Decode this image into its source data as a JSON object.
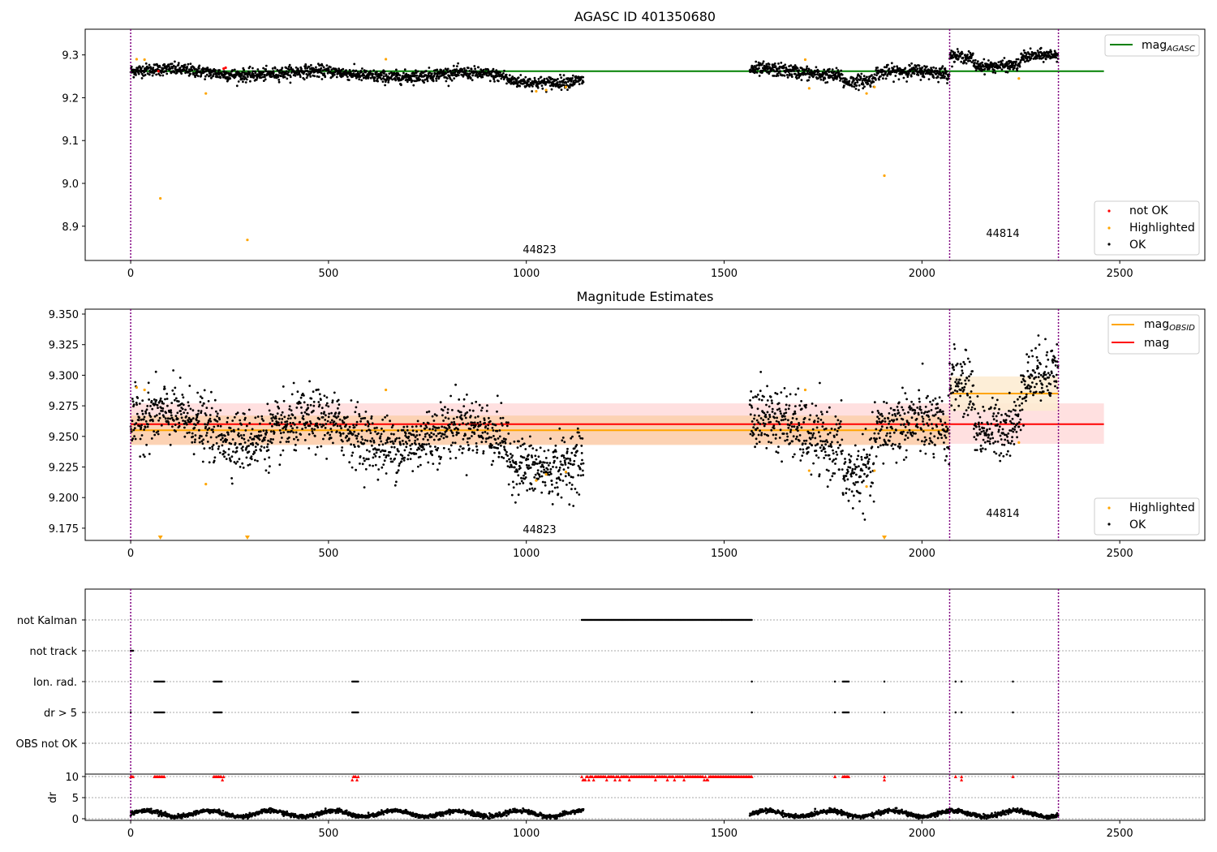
{
  "colors": {
    "ok": "#000000",
    "not_ok": "#ff0000",
    "highlighted": "#ffa500",
    "mag_agasc": "#008000",
    "mag_obsid": "#ffa500",
    "mag": "#ff0000",
    "obs_boundary": "#800080"
  },
  "chart_data": [
    {
      "type": "scatter",
      "title": "AGASC ID 401350680",
      "xlim": [
        -115,
        2715
      ],
      "ylim": [
        8.82,
        9.36
      ],
      "x_ticks": [
        "0",
        "500",
        "1000",
        "1500",
        "2000",
        "2500"
      ],
      "y_ticks": [
        "8.9",
        "9.0",
        "9.1",
        "9.2",
        "9.3"
      ],
      "obs_boundaries": [
        0,
        2070,
        2345
      ],
      "obs_labels": [
        {
          "text": "44823",
          "x": 1035,
          "y": 8.84
        },
        {
          "text": "44814",
          "x": 2207,
          "y": 8.878
        }
      ],
      "lines": [
        {
          "name": "mag_AGASC",
          "y": 9.262,
          "x": [
            0,
            2460
          ],
          "color": "#008000"
        }
      ],
      "legend_top": {
        "label": "mag",
        "sub": "AGASC",
        "loc": "upper right"
      },
      "legend_bottom": [
        {
          "label": "not OK",
          "color": "#ff0000"
        },
        {
          "label": "Highlighted",
          "color": "#ffa500"
        },
        {
          "label": "OK",
          "color": "#000000"
        }
      ],
      "ok_segments": [
        {
          "x0": 0,
          "x1": 1145,
          "y_start": 9.262,
          "y_end": 9.248,
          "spread": 0.024
        },
        {
          "x0": 1565,
          "x1": 2070,
          "y_start": 9.26,
          "y_end": 9.255,
          "spread": 0.026
        },
        {
          "x0": 2070,
          "x1": 2345,
          "y_start": 9.298,
          "y_end": 9.295,
          "spread": 0.022
        }
      ],
      "highlighted_points": [
        [
          15,
          9.29
        ],
        [
          35,
          9.289
        ],
        [
          75,
          8.965
        ],
        [
          190,
          9.21
        ],
        [
          295,
          8.868
        ],
        [
          645,
          9.29
        ],
        [
          1025,
          9.215
        ],
        [
          1050,
          9.218
        ],
        [
          1100,
          9.225
        ],
        [
          1705,
          9.289
        ],
        [
          1715,
          9.222
        ],
        [
          1860,
          9.21
        ],
        [
          1880,
          9.225
        ],
        [
          1905,
          9.018
        ],
        [
          2245,
          9.245
        ]
      ],
      "not_ok_points": [
        [
          70,
          9.262
        ],
        [
          235,
          9.268
        ],
        [
          240,
          9.27
        ]
      ]
    },
    {
      "type": "scatter",
      "title": "Magnitude Estimates",
      "xlim": [
        -115,
        2715
      ],
      "ylim": [
        9.165,
        9.354
      ],
      "x_ticks": [
        "0",
        "500",
        "1000",
        "1500",
        "2000",
        "2500"
      ],
      "y_ticks": [
        "9.175",
        "9.200",
        "9.225",
        "9.250",
        "9.275",
        "9.300",
        "9.325",
        "9.350"
      ],
      "obs_boundaries": [
        0,
        2070,
        2345
      ],
      "obs_labels": [
        {
          "text": "44823",
          "x": 1035,
          "y": 9.173
        },
        {
          "text": "44814",
          "x": 2207,
          "y": 9.183
        }
      ],
      "bands": [
        {
          "x": [
            0,
            2460
          ],
          "y": [
            9.244,
            9.277
          ],
          "color": "#ffdada"
        },
        {
          "x": [
            0,
            2070
          ],
          "y": [
            9.243,
            9.267
          ],
          "color": "#fccfaa"
        },
        {
          "x": [
            2070,
            2345
          ],
          "y": [
            9.271,
            9.299
          ],
          "color": "#fdebd0"
        }
      ],
      "lines": [
        {
          "name": "mag",
          "y": 9.26,
          "x": [
            0,
            2460
          ],
          "color": "#ff0000"
        },
        {
          "name": "mag_OBSID",
          "y": 9.255,
          "x": [
            0,
            2070
          ],
          "color": "#ffa500"
        },
        {
          "name": "mag_OBSID",
          "y": 9.285,
          "x": [
            2070,
            2345
          ],
          "color": "#ffa500"
        }
      ],
      "legend_top": [
        {
          "label": "mag",
          "sub": "OBSID",
          "color": "#ffa500"
        },
        {
          "label": "mag",
          "sub": "",
          "color": "#ff0000"
        }
      ],
      "legend_bottom": [
        {
          "label": "Highlighted",
          "color": "#ffa500"
        },
        {
          "label": "OK",
          "color": "#000000"
        }
      ],
      "ok_segments": [
        {
          "x0": 0,
          "x1": 1145,
          "y_start": 9.26,
          "y_end": 9.245,
          "spread": 0.04
        },
        {
          "x0": 1565,
          "x1": 2070,
          "y_start": 9.255,
          "y_end": 9.25,
          "spread": 0.045
        },
        {
          "x0": 2070,
          "x1": 2345,
          "y_start": 9.298,
          "y_end": 9.296,
          "spread": 0.04
        }
      ],
      "highlighted_points": [
        [
          15,
          9.29
        ],
        [
          35,
          9.288
        ],
        [
          190,
          9.211
        ],
        [
          645,
          9.288
        ],
        [
          1025,
          9.214
        ],
        [
          1050,
          9.219
        ],
        [
          1100,
          9.221
        ],
        [
          1705,
          9.288
        ],
        [
          1715,
          9.222
        ],
        [
          1860,
          9.209
        ],
        [
          1880,
          9.222
        ],
        [
          2245,
          9.245
        ]
      ],
      "out_of_range_markers": [
        75,
        295,
        1905
      ]
    },
    {
      "type": "scatter",
      "title": "",
      "xlim": [
        -115,
        2715
      ],
      "x_ticks": [
        "0",
        "500",
        "1000",
        "1500",
        "2000",
        "2500"
      ],
      "flag_rows": [
        "not Kalman",
        "not track",
        "Ion. rad.",
        "dr > 5",
        "OBS not OK"
      ],
      "obs_boundaries": [
        0,
        2070,
        2345
      ],
      "flags": {
        "not Kalman": [
          [
            1140,
            1570
          ]
        ],
        "not track": [
          [
            0,
            6
          ]
        ],
        "Ion. rad.": [
          [
            60,
            85
          ],
          [
            210,
            230
          ],
          [
            560,
            575
          ],
          [
            1570,
            1570
          ],
          [
            1780,
            1780
          ],
          [
            1800,
            1815
          ],
          [
            1905,
            1905
          ],
          [
            2085,
            2085
          ],
          [
            2100,
            2100
          ],
          [
            2230,
            2230
          ]
        ],
        "dr > 5": [
          [
            0,
            0
          ],
          [
            60,
            85
          ],
          [
            210,
            230
          ],
          [
            560,
            575
          ],
          [
            1570,
            1570
          ],
          [
            1780,
            1780
          ],
          [
            1800,
            1815
          ],
          [
            1905,
            1905
          ],
          [
            2085,
            2085
          ],
          [
            2100,
            2100
          ],
          [
            2230,
            2230
          ]
        ],
        "OBS not OK": []
      },
      "dr_ylabel": "dr",
      "dr_ticks": [
        "0",
        "5",
        "10"
      ],
      "dr_ylim": [
        -0.5,
        10.5
      ],
      "dr_high_ranges": [
        [
          0,
          6
        ],
        [
          60,
          85
        ],
        [
          210,
          235
        ],
        [
          560,
          575
        ],
        [
          1140,
          1570
        ],
        [
          1780,
          1780
        ],
        [
          1800,
          1815
        ],
        [
          1905,
          1905
        ],
        [
          2085,
          2085
        ],
        [
          2100,
          2100
        ],
        [
          2230,
          2230
        ]
      ],
      "dr_ok_segments": [
        [
          0,
          1145
        ],
        [
          1565,
          2345
        ]
      ],
      "dr_typical": 1.2
    }
  ]
}
